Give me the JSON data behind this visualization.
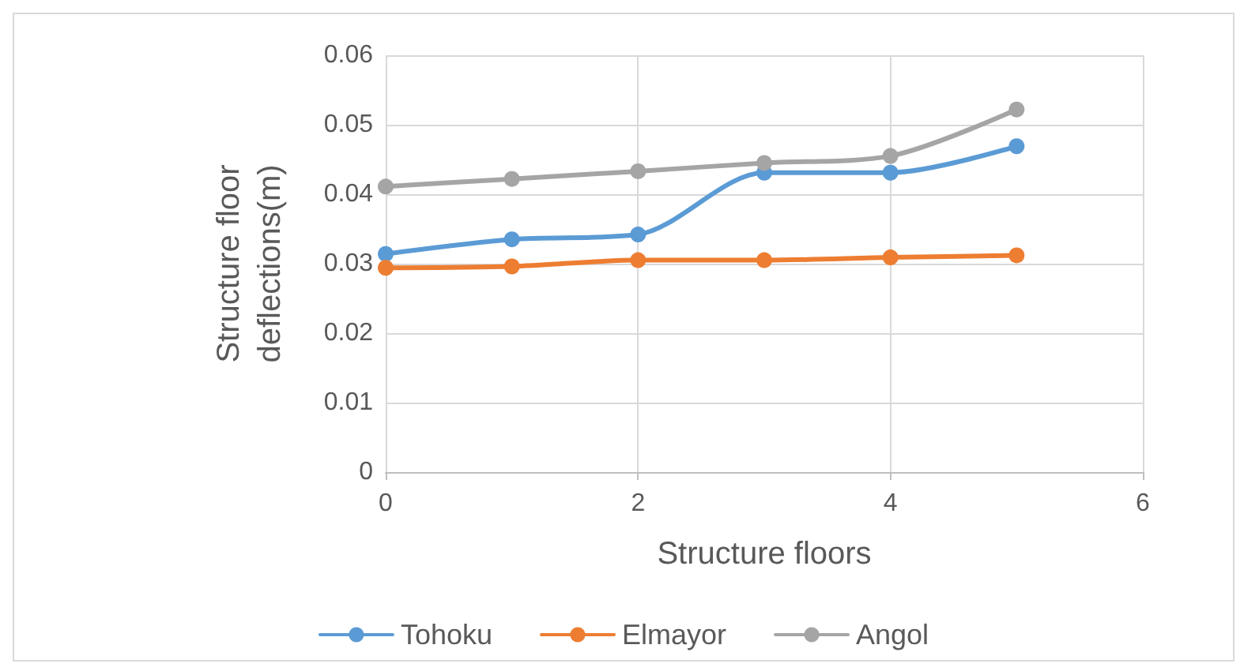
{
  "chart_data": {
    "type": "line",
    "xlabel": "Structure floors",
    "ylabel": "Structure floor\ndeflections(m)",
    "x": [
      0,
      1,
      2,
      3,
      4,
      5
    ],
    "series": [
      {
        "name": "Tohoku",
        "color": "#5b9bd5",
        "values": [
          0.0314,
          0.0335,
          0.0342,
          0.0431,
          0.0431,
          0.0469
        ]
      },
      {
        "name": "Elmayor",
        "color": "#ed7d31",
        "values": [
          0.0294,
          0.0296,
          0.0305,
          0.0305,
          0.0309,
          0.0312
        ]
      },
      {
        "name": "Angol",
        "color": "#a5a5a5",
        "values": [
          0.0411,
          0.0422,
          0.0433,
          0.0445,
          0.0455,
          0.0522
        ]
      }
    ],
    "xlim": [
      0,
      6
    ],
    "xticks": [
      0,
      2,
      4,
      6
    ],
    "ylim": [
      0,
      0.06
    ],
    "yticks": [
      0,
      0.01,
      0.02,
      0.03,
      0.04,
      0.05,
      0.06
    ],
    "grid": true,
    "legend": "bottom",
    "marker": "circle",
    "line_style": "solid"
  }
}
